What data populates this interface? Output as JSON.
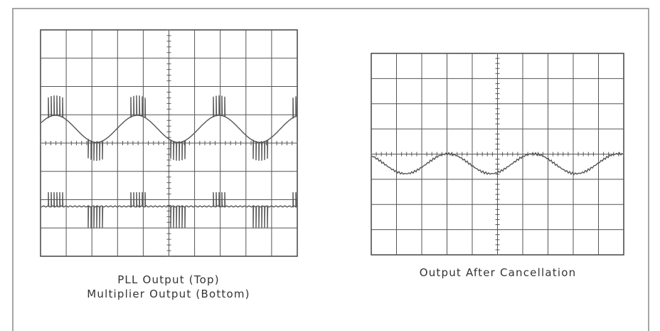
{
  "captions": {
    "left": [
      "PLL Output (Top)",
      "Multiplier Output (Bottom)"
    ],
    "right": "Output After Cancellation"
  }
}
